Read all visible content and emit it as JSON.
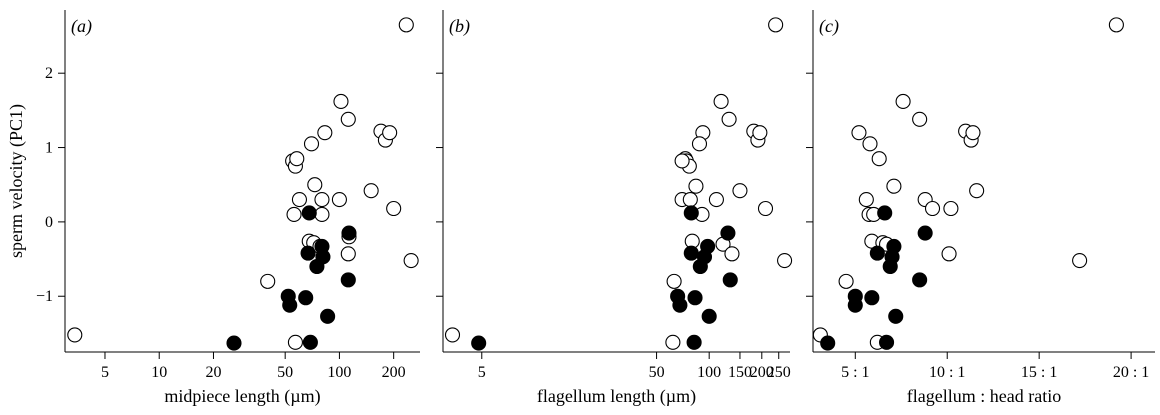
{
  "chart_data": [
    {
      "type": "scatter",
      "panel_label": "(a)",
      "xlabel": "midpiece length (µm)",
      "ylabel": "sperm velocity (PC1)",
      "xscale": "log",
      "xlim": [
        3,
        280
      ],
      "ylim": [
        -1.75,
        2.85
      ],
      "xticks": [
        5,
        10,
        20,
        50,
        100,
        200
      ],
      "xtick_labels": [
        "5",
        "10",
        "20",
        "50",
        "100",
        "200"
      ],
      "yticks": [
        -1,
        0,
        1,
        2
      ],
      "ytick_labels": [
        "−1",
        "0",
        "1",
        "2"
      ],
      "series": [
        {
          "marker": "open-circle",
          "x": [
            3.4,
            40,
            55,
            57,
            58,
            60,
            56,
            57,
            68,
            72,
            78,
            80,
            70,
            73,
            80,
            100,
            83,
            102,
            112,
            113,
            112,
            150,
            170,
            180,
            190,
            200,
            235,
            250
          ],
          "y": [
            -1.52,
            -0.8,
            0.82,
            0.75,
            0.85,
            0.3,
            0.1,
            -1.62,
            -0.26,
            -0.28,
            -0.33,
            0.1,
            1.05,
            0.5,
            0.3,
            0.3,
            1.2,
            1.62,
            1.38,
            -0.2,
            -0.43,
            0.42,
            1.22,
            1.1,
            1.2,
            0.18,
            2.65,
            -0.52
          ]
        },
        {
          "marker": "filled-circle",
          "x": [
            26,
            52,
            53,
            65,
            67,
            68,
            69,
            75,
            80,
            81,
            86,
            113,
            112
          ],
          "y": [
            -1.63,
            -1.0,
            -1.12,
            -1.02,
            -0.42,
            0.12,
            -1.62,
            -0.6,
            -0.33,
            -0.47,
            -1.27,
            -0.15,
            -0.78
          ]
        }
      ]
    },
    {
      "type": "scatter",
      "panel_label": "(b)",
      "xlabel": "flagellum length (µm)",
      "xscale": "log",
      "xlim": [
        3,
        290
      ],
      "ylim": [
        -1.75,
        2.85
      ],
      "xticks": [
        5,
        50,
        100,
        150,
        200,
        250
      ],
      "xtick_labels": [
        "5",
        "50",
        "100",
        "150",
        "200",
        "250"
      ],
      "yticks": [
        -1,
        0,
        1,
        2
      ],
      "ytick_labels": [
        "",
        "",
        "",
        ""
      ],
      "series": [
        {
          "marker": "open-circle",
          "x": [
            3.4,
            63,
            70,
            73,
            74,
            77,
            70,
            62,
            78,
            80,
            92,
            84,
            88,
            91,
            110,
            117,
            120,
            130,
            135,
            150,
            180,
            190,
            195,
            210,
            240,
            270
          ],
          "y": [
            -1.52,
            -0.8,
            0.3,
            0.85,
            0.82,
            0.75,
            0.82,
            -1.62,
            0.3,
            -0.26,
            1.2,
            0.48,
            1.05,
            0.1,
            0.3,
            1.62,
            -0.3,
            1.38,
            -0.43,
            0.42,
            1.22,
            1.1,
            1.2,
            0.18,
            2.65,
            -0.52
          ]
        },
        {
          "marker": "filled-circle",
          "x": [
            4.8,
            66,
            68,
            79,
            79,
            83,
            82,
            89,
            94,
            98,
            100,
            128,
            132
          ],
          "y": [
            -1.63,
            -1.0,
            -1.12,
            -0.42,
            0.12,
            -1.02,
            -1.62,
            -0.6,
            -0.47,
            -0.33,
            -1.27,
            -0.15,
            -0.78
          ]
        }
      ]
    },
    {
      "type": "scatter",
      "panel_label": "(c)",
      "xlabel": "flagellum : head ratio",
      "xscale": "linear",
      "xlim": [
        2.7,
        21.3
      ],
      "ylim": [
        -1.75,
        2.85
      ],
      "xticks": [
        5,
        10,
        15,
        20
      ],
      "xtick_labels": [
        "5 : 1",
        "10 : 1",
        "15 : 1",
        "20 : 1"
      ],
      "yticks": [
        -1,
        0,
        1,
        2
      ],
      "ytick_labels": [
        "",
        "",
        "",
        ""
      ],
      "series": [
        {
          "marker": "open-circle",
          "x": [
            3.1,
            4.5,
            5.2,
            5.6,
            5.75,
            5.9,
            6.0,
            6.2,
            6.5,
            5.8,
            6.3,
            6.7,
            7.1,
            7.6,
            8.5,
            8.8,
            9.2,
            10.1,
            10.2,
            11.0,
            11.3,
            11.4,
            11.6,
            17.2,
            19.2
          ],
          "y": [
            -1.52,
            -0.8,
            1.2,
            0.3,
            0.1,
            -0.26,
            0.1,
            -1.62,
            -0.28,
            1.05,
            0.85,
            -0.3,
            0.48,
            1.62,
            1.38,
            0.3,
            0.18,
            -0.43,
            0.18,
            1.22,
            1.1,
            1.2,
            0.42,
            -0.52,
            2.65
          ]
        },
        {
          "marker": "filled-circle",
          "x": [
            3.5,
            5.0,
            5.0,
            5.9,
            6.2,
            6.6,
            6.7,
            6.9,
            7.0,
            7.1,
            7.2,
            8.5,
            8.8
          ],
          "y": [
            -1.63,
            -1.0,
            -1.12,
            -1.02,
            -0.42,
            0.12,
            -1.62,
            -0.6,
            -0.47,
            -0.33,
            -1.27,
            -0.78,
            -0.15
          ]
        }
      ]
    }
  ]
}
